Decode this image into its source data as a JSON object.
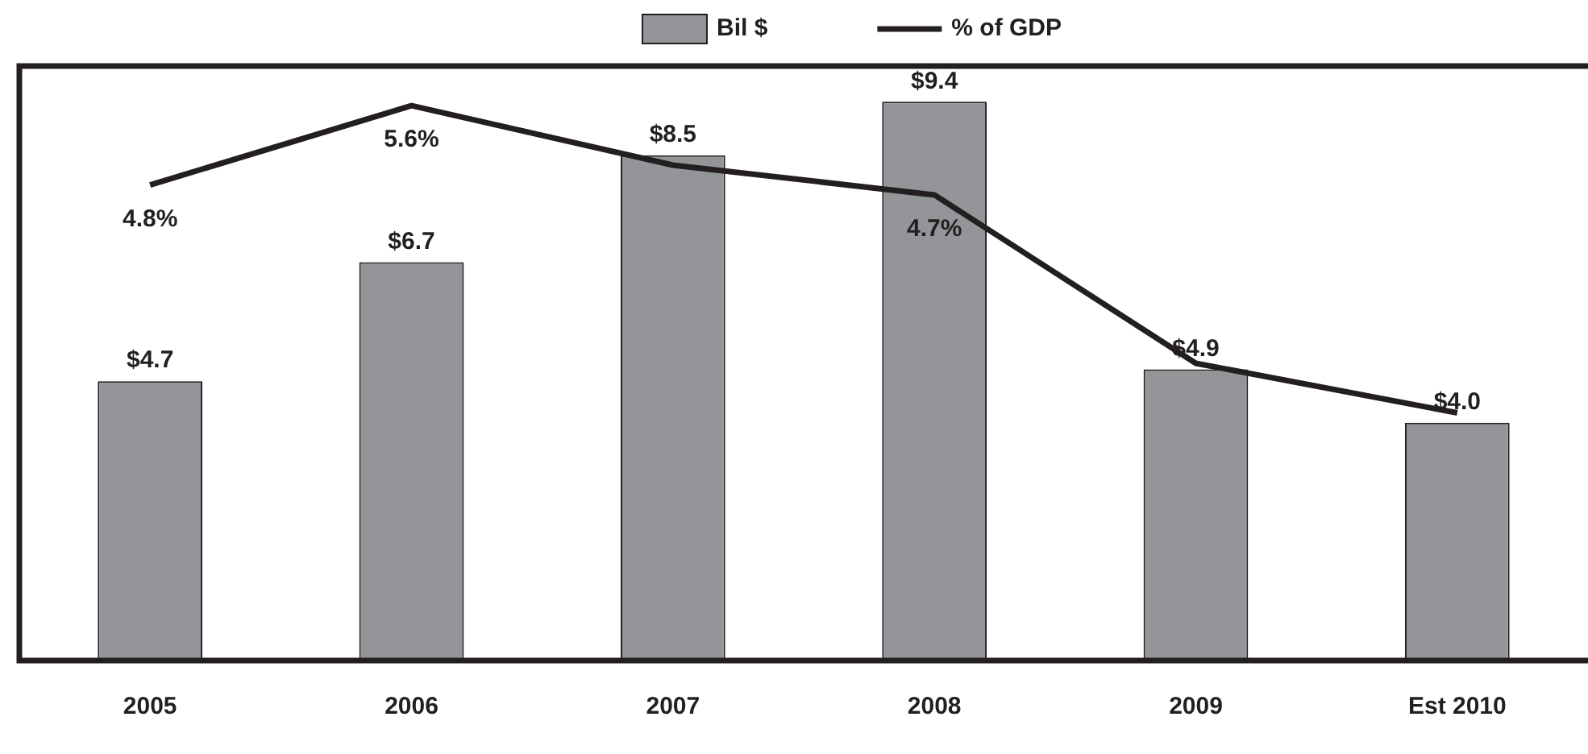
{
  "chart_data": {
    "type": "bar",
    "categories": [
      "2005",
      "2006",
      "2007",
      "2008",
      "2009",
      "Est 2010"
    ],
    "ylim": [
      0,
      10
    ],
    "y2lim": [
      0,
      6
    ],
    "tick_labels": "x",
    "legend": "top",
    "marker": "none",
    "line_style": "solid",
    "series": [
      {
        "name": "Bil $",
        "color": "#939598",
        "values": [
          4.7,
          6.7,
          8.5,
          9.4,
          4.9,
          4.0
        ],
        "value_labels": [
          "$4.7",
          "$6.7",
          "$8.5",
          "$9.4",
          "$4.9",
          "$4.0"
        ]
      },
      {
        "name": "% of GDP",
        "type": "line",
        "axis": "y2",
        "color": "#231f20",
        "values": [
          4.8,
          5.6,
          5.0,
          4.7,
          3.0,
          2.5
        ],
        "value_labels": [
          "4.8%",
          "5.6%",
          null,
          "4.7%",
          null,
          null
        ]
      }
    ]
  }
}
